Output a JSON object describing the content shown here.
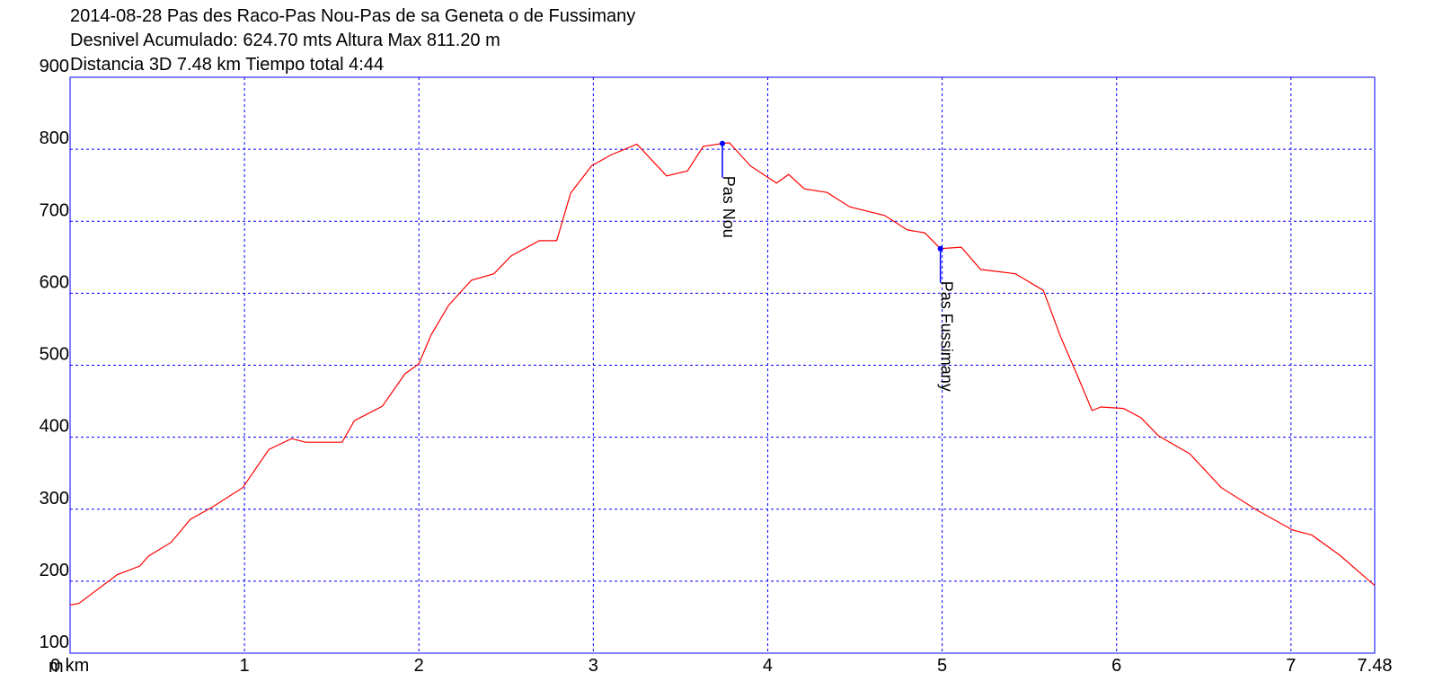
{
  "chart_data": {
    "type": "line",
    "title_lines": [
      "2014-08-28 Pas des Raco-Pas Nou-Pas de sa Geneta o de Fussimany",
      "Desnivel Acumulado: 624.70 mts  Altura Max 811.20 m",
      "Distancia 3D 7.48 km  Tiempo total 4:44"
    ],
    "y_unit": "m",
    "x": [
      0,
      0.05,
      0.27,
      0.4,
      0.45,
      0.58,
      0.69,
      0.81,
      0.99,
      1.14,
      1.27,
      1.35,
      1.56,
      1.63,
      1.79,
      1.92,
      2.0,
      2.07,
      2.17,
      2.3,
      2.43,
      2.53,
      2.69,
      2.79,
      2.87,
      2.99,
      3.1,
      3.25,
      3.42,
      3.54,
      3.63,
      3.74,
      3.78,
      3.9,
      4.05,
      4.12,
      4.21,
      4.34,
      4.47,
      4.67,
      4.8,
      4.9,
      4.99,
      5.11,
      5.22,
      5.42,
      5.58,
      5.68,
      5.78,
      5.86,
      5.91,
      6.04,
      6.14,
      6.24,
      6.42,
      6.6,
      6.81,
      7.01,
      7.12,
      7.28,
      7.48
    ],
    "values": [
      167,
      169,
      209,
      221,
      235,
      254,
      286,
      302,
      330,
      383,
      398,
      393,
      393,
      423,
      443,
      488,
      502,
      542,
      583,
      618,
      627,
      652,
      673,
      673,
      739,
      777,
      792,
      807,
      763,
      770,
      804,
      808,
      809,
      777,
      753,
      765,
      745,
      740,
      720,
      708,
      688,
      684,
      662,
      664,
      633,
      627,
      604,
      539,
      483,
      437,
      442,
      440,
      427,
      402,
      377,
      330,
      298,
      271,
      264,
      236,
      194
    ],
    "color": "#ff0000",
    "xlim": [
      0,
      7.48
    ],
    "xticks": [
      {
        "value": 0,
        "label": "0 km"
      },
      1,
      2,
      3,
      4,
      5,
      6,
      7,
      7.48
    ],
    "ylim": [
      100,
      900
    ],
    "yticks": [
      100,
      200,
      300,
      400,
      500,
      600,
      700,
      800,
      900
    ],
    "grid": true,
    "annotations": [
      {
        "x": 3.74,
        "y": 808,
        "label": "Pas Nou"
      },
      {
        "x": 4.99,
        "y": 662,
        "label": "Pas Fussimany"
      }
    ],
    "annotation_color": "#0000ff"
  }
}
